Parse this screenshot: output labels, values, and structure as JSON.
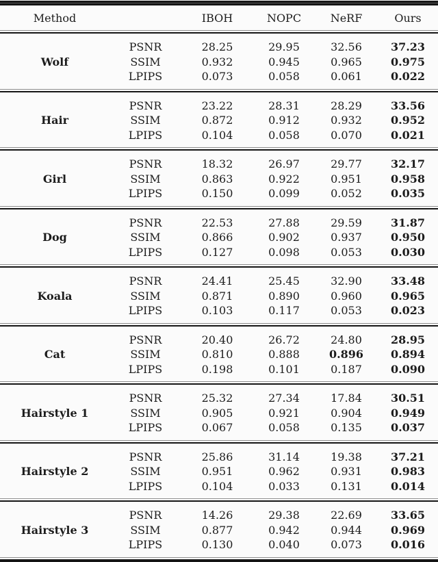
{
  "table": {
    "header": {
      "method_label": "Method",
      "columns": [
        "IBOH",
        "NOPC",
        "NeRF",
        "Ours"
      ]
    },
    "metrics": [
      "PSNR",
      "SSIM",
      "LPIPS"
    ],
    "sections": [
      {
        "scene": "Wolf",
        "rows": [
          {
            "metric": "PSNR",
            "values": [
              "28.25",
              "29.95",
              "32.56",
              "37.23"
            ],
            "bold": [
              false,
              false,
              false,
              true
            ]
          },
          {
            "metric": "SSIM",
            "values": [
              "0.932",
              "0.945",
              "0.965",
              "0.975"
            ],
            "bold": [
              false,
              false,
              false,
              true
            ]
          },
          {
            "metric": "LPIPS",
            "values": [
              "0.073",
              "0.058",
              "0.061",
              "0.022"
            ],
            "bold": [
              false,
              false,
              false,
              true
            ]
          }
        ]
      },
      {
        "scene": "Hair",
        "rows": [
          {
            "metric": "PSNR",
            "values": [
              "23.22",
              "28.31",
              "28.29",
              "33.56"
            ],
            "bold": [
              false,
              false,
              false,
              true
            ]
          },
          {
            "metric": "SSIM",
            "values": [
              "0.872",
              "0.912",
              "0.932",
              "0.952"
            ],
            "bold": [
              false,
              false,
              false,
              true
            ]
          },
          {
            "metric": "LPIPS",
            "values": [
              "0.104",
              "0.058",
              "0.070",
              "0.021"
            ],
            "bold": [
              false,
              false,
              false,
              true
            ]
          }
        ]
      },
      {
        "scene": "Girl",
        "rows": [
          {
            "metric": "PSNR",
            "values": [
              "18.32",
              "26.97",
              "29.77",
              "32.17"
            ],
            "bold": [
              false,
              false,
              false,
              true
            ]
          },
          {
            "metric": "SSIM",
            "values": [
              "0.863",
              "0.922",
              "0.951",
              "0.958"
            ],
            "bold": [
              false,
              false,
              false,
              true
            ]
          },
          {
            "metric": "LPIPS",
            "values": [
              "0.150",
              "0.099",
              "0.052",
              "0.035"
            ],
            "bold": [
              false,
              false,
              false,
              true
            ]
          }
        ]
      },
      {
        "scene": "Dog",
        "rows": [
          {
            "metric": "PSNR",
            "values": [
              "22.53",
              "27.88",
              "29.59",
              "31.87"
            ],
            "bold": [
              false,
              false,
              false,
              true
            ]
          },
          {
            "metric": "SSIM",
            "values": [
              "0.866",
              "0.902",
              "0.937",
              "0.950"
            ],
            "bold": [
              false,
              false,
              false,
              true
            ]
          },
          {
            "metric": "LPIPS",
            "values": [
              "0.127",
              "0.098",
              "0.053",
              "0.030"
            ],
            "bold": [
              false,
              false,
              false,
              true
            ]
          }
        ]
      },
      {
        "scene": "Koala",
        "rows": [
          {
            "metric": "PSNR",
            "values": [
              "24.41",
              "25.45",
              "32.90",
              "33.48"
            ],
            "bold": [
              false,
              false,
              false,
              true
            ]
          },
          {
            "metric": "SSIM",
            "values": [
              "0.871",
              "0.890",
              "0.960",
              "0.965"
            ],
            "bold": [
              false,
              false,
              false,
              true
            ]
          },
          {
            "metric": "LPIPS",
            "values": [
              "0.103",
              "0.117",
              "0.053",
              "0.023"
            ],
            "bold": [
              false,
              false,
              false,
              true
            ]
          }
        ]
      },
      {
        "scene": "Cat",
        "rows": [
          {
            "metric": "PSNR",
            "values": [
              "20.40",
              "26.72",
              "24.80",
              "28.95"
            ],
            "bold": [
              false,
              false,
              false,
              true
            ]
          },
          {
            "metric": "SSIM",
            "values": [
              "0.810",
              "0.888",
              "0.896",
              "0.894"
            ],
            "bold": [
              false,
              false,
              true,
              true
            ]
          },
          {
            "metric": "LPIPS",
            "values": [
              "0.198",
              "0.101",
              "0.187",
              "0.090"
            ],
            "bold": [
              false,
              false,
              false,
              true
            ]
          }
        ]
      },
      {
        "scene": "Hairstyle 1",
        "rows": [
          {
            "metric": "PSNR",
            "values": [
              "25.32",
              "27.34",
              "17.84",
              "30.51"
            ],
            "bold": [
              false,
              false,
              false,
              true
            ]
          },
          {
            "metric": "SSIM",
            "values": [
              "0.905",
              "0.921",
              "0.904",
              "0.949"
            ],
            "bold": [
              false,
              false,
              false,
              true
            ]
          },
          {
            "metric": "LPIPS",
            "values": [
              "0.067",
              "0.058",
              "0.135",
              "0.037"
            ],
            "bold": [
              false,
              false,
              false,
              true
            ]
          }
        ]
      },
      {
        "scene": "Hairstyle 2",
        "rows": [
          {
            "metric": "PSNR",
            "values": [
              "25.86",
              "31.14",
              "19.38",
              "37.21"
            ],
            "bold": [
              false,
              false,
              false,
              true
            ]
          },
          {
            "metric": "SSIM",
            "values": [
              "0.951",
              "0.962",
              "0.931",
              "0.983"
            ],
            "bold": [
              false,
              false,
              false,
              true
            ]
          },
          {
            "metric": "LPIPS",
            "values": [
              "0.104",
              "0.033",
              "0.131",
              "0.014"
            ],
            "bold": [
              false,
              false,
              false,
              true
            ]
          }
        ]
      },
      {
        "scene": "Hairstyle 3",
        "rows": [
          {
            "metric": "PSNR",
            "values": [
              "14.26",
              "29.38",
              "22.69",
              "33.65"
            ],
            "bold": [
              false,
              false,
              false,
              true
            ]
          },
          {
            "metric": "SSIM",
            "values": [
              "0.877",
              "0.942",
              "0.944",
              "0.969"
            ],
            "bold": [
              false,
              false,
              false,
              true
            ]
          },
          {
            "metric": "LPIPS",
            "values": [
              "0.130",
              "0.040",
              "0.073",
              "0.016"
            ],
            "bold": [
              false,
              false,
              false,
              true
            ]
          }
        ]
      }
    ]
  },
  "colors": {
    "text": "#1c1c1c",
    "rule": "#151515",
    "background": "#fbfbfb"
  }
}
